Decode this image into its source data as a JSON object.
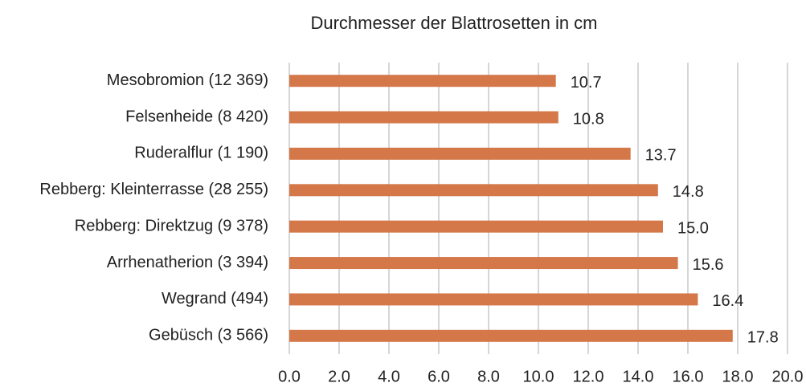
{
  "chart_data": {
    "type": "bar",
    "orientation": "horizontal",
    "title": "Durchmesser der Blattrosetten in cm",
    "categories": [
      "Mesobromion (12 369)",
      "Felsenheide (8 420)",
      "Ruderalflur (1 190)",
      "Rebberg: Kleinterrasse (28 255)",
      "Rebberg: Direktzug (9 378)",
      "Arrhenatherion (3 394)",
      "Wegrand (494)",
      "Gebüsch (3 566)"
    ],
    "values": [
      10.7,
      10.8,
      13.7,
      14.8,
      15.0,
      15.6,
      16.4,
      17.8
    ],
    "value_labels": [
      "10.7",
      "10.8",
      "13.7",
      "14.8",
      "15.0",
      "15.6",
      "16.4",
      "17.8"
    ],
    "color": "#d4784a",
    "xlim": [
      0,
      20
    ],
    "xticks": [
      {
        "value": 0,
        "label": "0.0"
      },
      {
        "value": 2,
        "label": "2.0"
      },
      {
        "value": 4,
        "label": "4.0"
      },
      {
        "value": 6,
        "label": "6.0"
      },
      {
        "value": 8,
        "label": "8.0"
      },
      {
        "value": 10,
        "label": "10.0"
      },
      {
        "value": 12,
        "label": "12.0"
      },
      {
        "value": 14,
        "label": "14.0"
      },
      {
        "value": 16,
        "label": "16.0"
      },
      {
        "value": 18,
        "label": "18.0"
      },
      {
        "value": 20,
        "label": "20.0"
      }
    ],
    "grid": true
  }
}
